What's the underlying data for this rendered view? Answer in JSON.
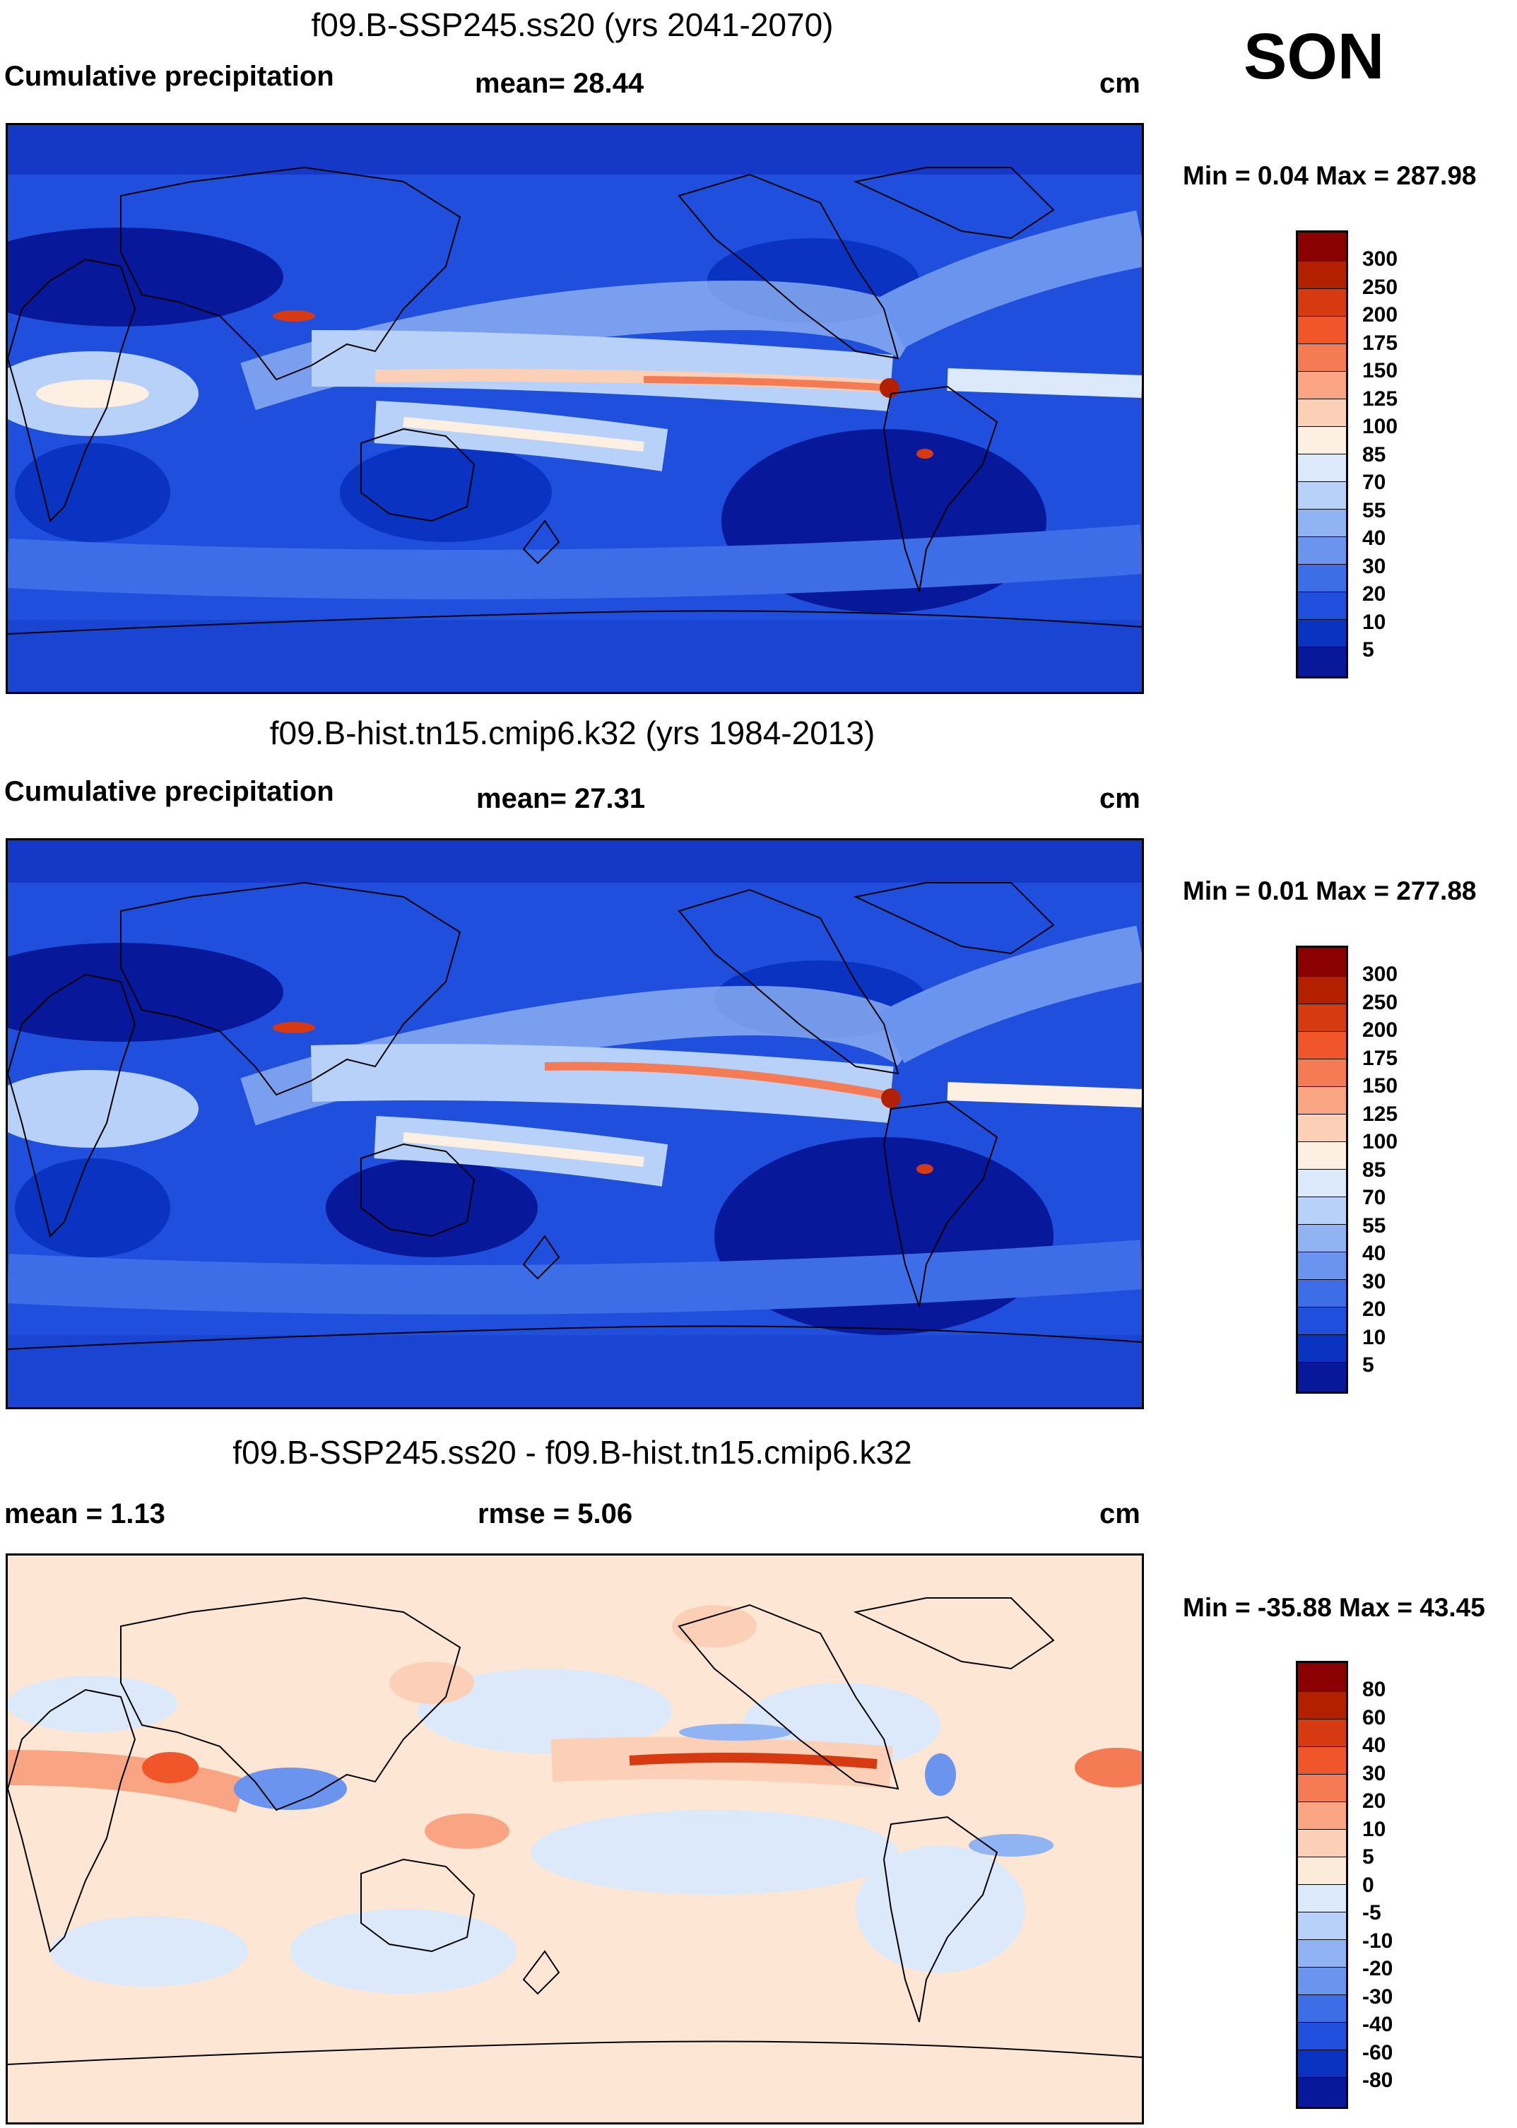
{
  "season": "SON",
  "units": "cm",
  "panels": [
    {
      "title": "f09.B-SSP245.ss20 (yrs 2041-2070)",
      "left_label": "Cumulative precipitation",
      "center_label": "mean=  28.44",
      "right_label": "cm",
      "minmax": "Min =   0.04 Max = 287.98",
      "colorbar_labels": [
        "300",
        "250",
        "200",
        "175",
        "150",
        "125",
        "100",
        "85",
        "70",
        "55",
        "40",
        "30",
        "20",
        "10",
        "5"
      ],
      "colorbar_colors": [
        "#8b0000",
        "#b22000",
        "#d73a10",
        "#f0562a",
        "#f47b54",
        "#f9a583",
        "#fcd0b6",
        "#fdf0e2",
        "#dbe9fb",
        "#b7d1f8",
        "#90b3f3",
        "#6a94ee",
        "#3d6ee7",
        "#1f4fdc",
        "#0b33c2",
        "#07189a"
      ]
    },
    {
      "title": "f09.B-hist.tn15.cmip6.k32 (yrs 1984-2013)",
      "left_label": "Cumulative precipitation",
      "center_label": "mean=  27.31",
      "right_label": "cm",
      "minmax": "Min =   0.01 Max = 277.88",
      "colorbar_labels": [
        "300",
        "250",
        "200",
        "175",
        "150",
        "125",
        "100",
        "85",
        "70",
        "55",
        "40",
        "30",
        "20",
        "10",
        "5"
      ],
      "colorbar_colors": [
        "#8b0000",
        "#b22000",
        "#d73a10",
        "#f0562a",
        "#f47b54",
        "#f9a583",
        "#fcd0b6",
        "#fdf0e2",
        "#dbe9fb",
        "#b7d1f8",
        "#90b3f3",
        "#6a94ee",
        "#3d6ee7",
        "#1f4fdc",
        "#0b33c2",
        "#07189a"
      ]
    },
    {
      "title": "f09.B-SSP245.ss20 - f09.B-hist.tn15.cmip6.k32",
      "left_label": "mean =    1.13",
      "center_label": "rmse =    5.06",
      "right_label": "cm",
      "minmax": "Min = -35.88 Max =  43.45",
      "colorbar_labels": [
        "80",
        "60",
        "40",
        "30",
        "20",
        "10",
        "5",
        "0",
        "-5",
        "-10",
        "-20",
        "-30",
        "-40",
        "-60",
        "-80"
      ],
      "colorbar_colors": [
        "#8b0000",
        "#b22000",
        "#d73a10",
        "#f0562a",
        "#f47b54",
        "#f9a583",
        "#fcd0b6",
        "#fdebd9",
        "#dbe9fb",
        "#b7d1f8",
        "#90b3f3",
        "#6a94ee",
        "#3d6ee7",
        "#1f4fdc",
        "#0b33c2",
        "#07189a"
      ]
    }
  ],
  "colors": {
    "map_base_high": "#1f4fdc",
    "map_base_diff": "#fde7d4",
    "coastline": "#000000"
  }
}
